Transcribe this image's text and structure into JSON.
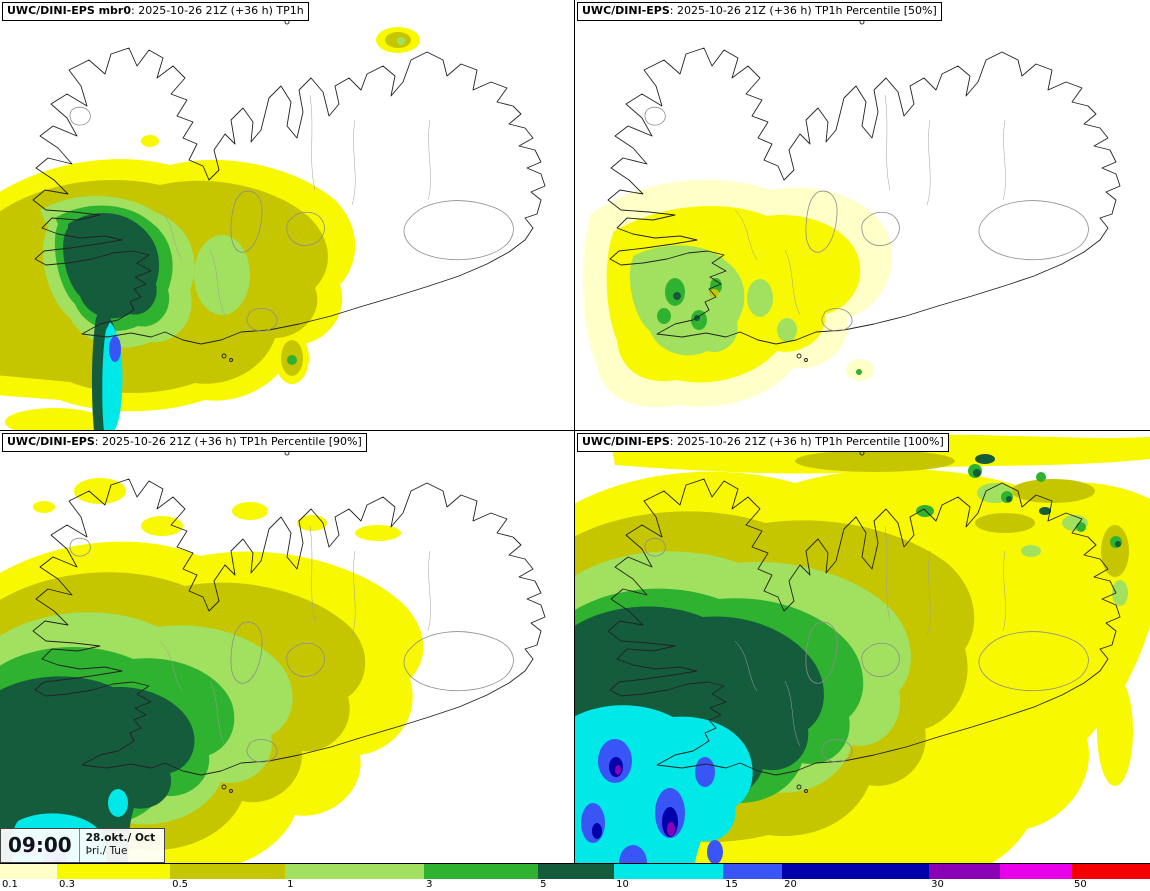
{
  "panels": [
    {
      "title_bold": "UWC/DINI-EPS mbr0",
      "title_rest": ": 2025-10-26 21Z (+36 h) TP1h"
    },
    {
      "title_bold": "UWC/DINI-EPS",
      "title_rest": ": 2025-10-26 21Z (+36 h) TP1h Percentile [50%]"
    },
    {
      "title_bold": "UWC/DINI-EPS",
      "title_rest": ": 2025-10-26 21Z (+36 h) TP1h Percentile [90%]"
    },
    {
      "title_bold": "UWC/DINI-EPS",
      "title_rest": ": 2025-10-26 21Z (+36 h) TP1h Percentile [100%]"
    }
  ],
  "time_box": {
    "time": "09:00",
    "date": "28.okt./ Oct",
    "day": "Þri./ Tue"
  },
  "colorbar": {
    "segments": [
      {
        "label": "0.1",
        "color": "#FFFFC8",
        "width": 4.96
      },
      {
        "label": "0.3",
        "color": "#F8F800",
        "width": 9.83
      },
      {
        "label": "0.5",
        "color": "#C6C600",
        "width": 10.0
      },
      {
        "label": "1",
        "color": "#A2E05F",
        "width": 12.09
      },
      {
        "label": "3",
        "color": "#2FB22F",
        "width": 9.91
      },
      {
        "label": "5",
        "color": "#155C3D",
        "width": 6.61
      },
      {
        "label": "10",
        "color": "#00E8E8",
        "width": 9.48
      },
      {
        "label": "15",
        "color": "#3A55F5",
        "width": 5.13
      },
      {
        "label": "20",
        "color": "#0000AA",
        "width": 12.78
      },
      {
        "label": "30",
        "color": "#8A00B4",
        "width": 6.17
      },
      {
        "label": null,
        "color": "#E800E8",
        "width": 6.26
      },
      {
        "label": "50",
        "color": "#F40000",
        "width": 6.78
      }
    ]
  }
}
